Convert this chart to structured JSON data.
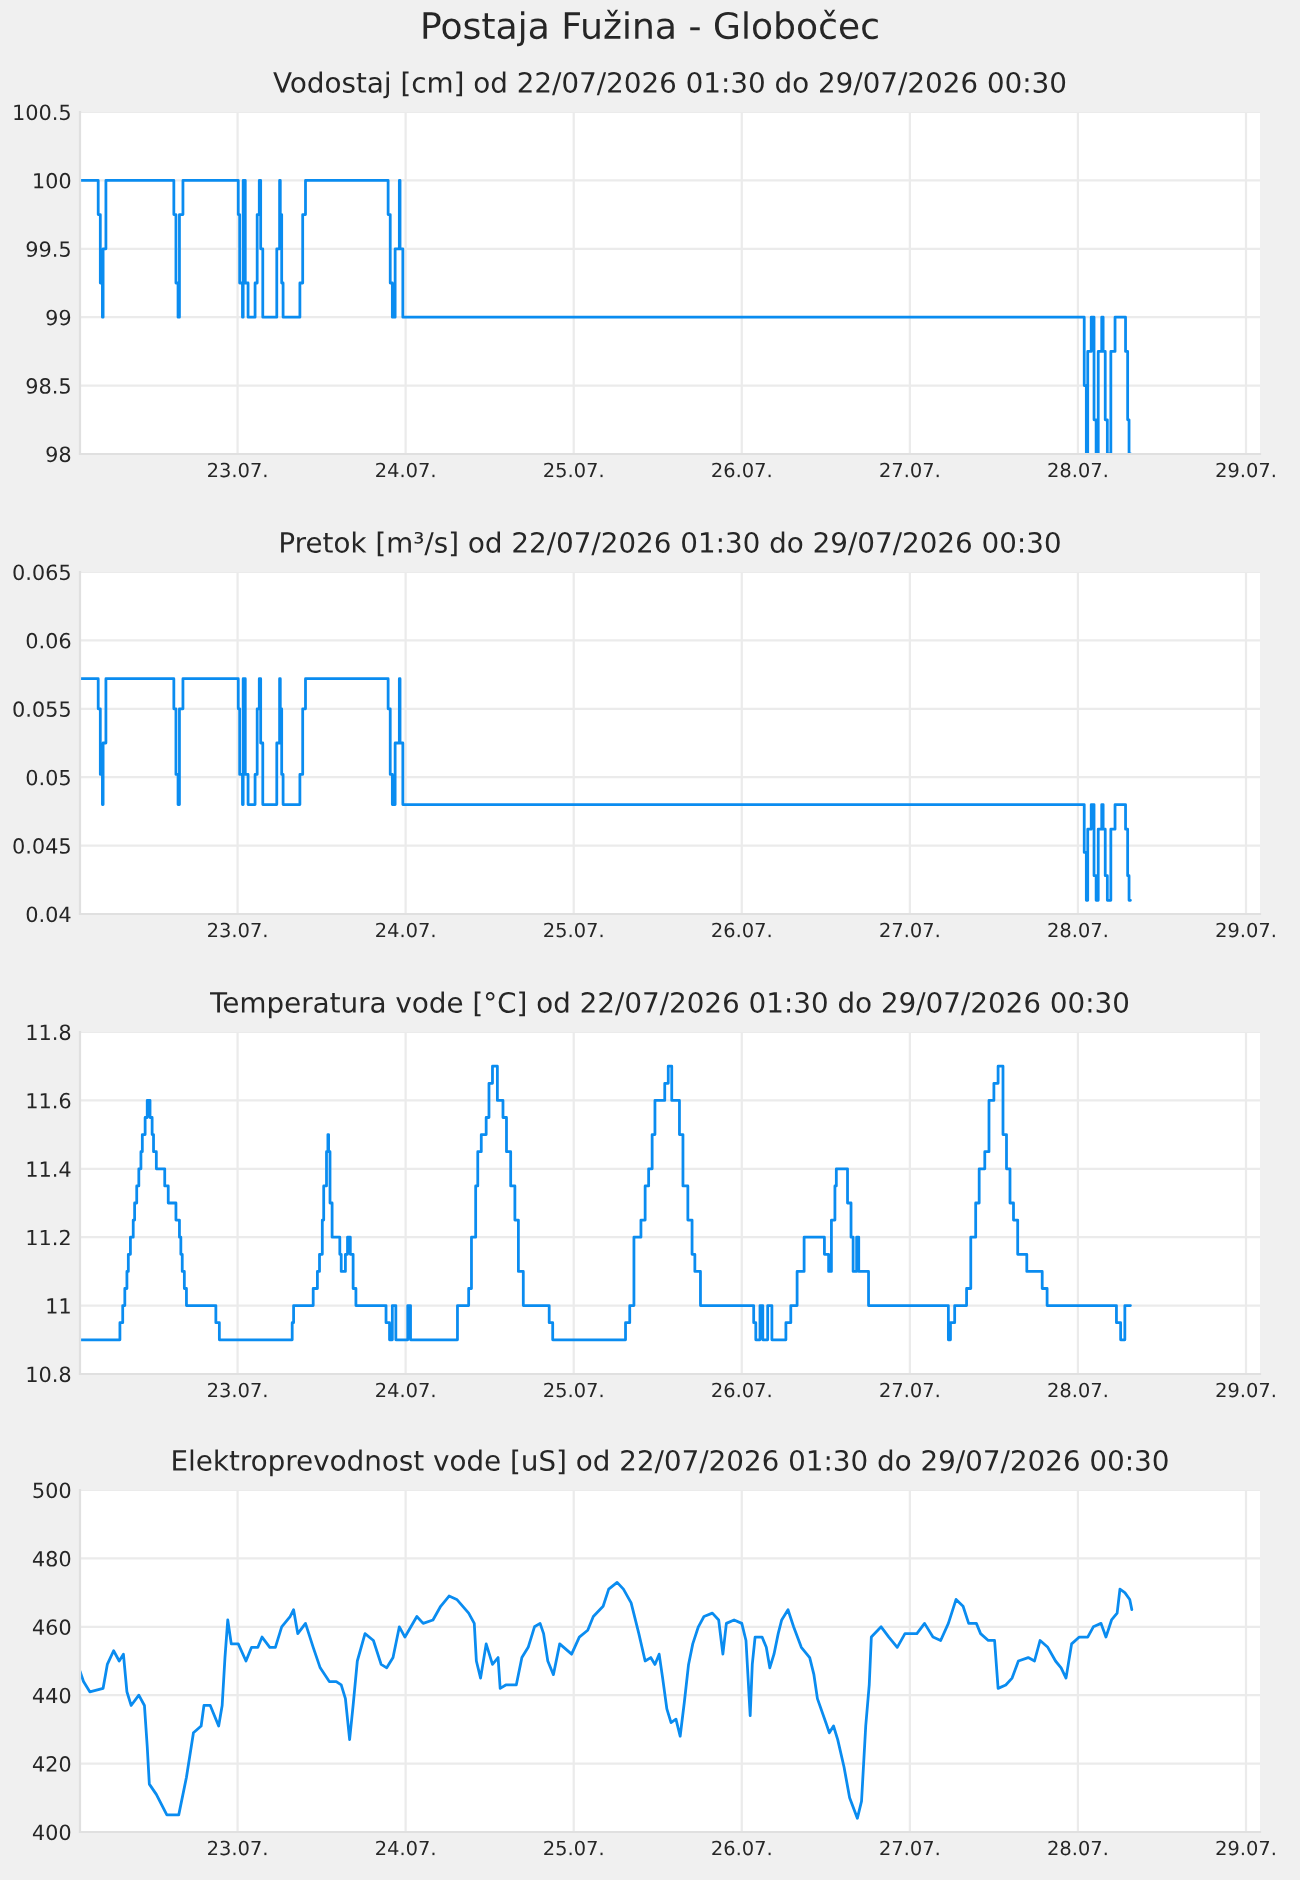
{
  "chart_data": [
    {
      "type": "step",
      "title": "Postaja Fužina - Globočec",
      "subtitle": "Vodostaj [cm] od 22/07/2026 01:30 do 29/07/2026 00:30",
      "xlim": [
        "2026-07-22T01:30",
        "2026-07-29T02:00"
      ],
      "xticks": [
        {
          "value": "2026-07-23",
          "label": "23.07."
        },
        {
          "value": "2026-07-24",
          "label": "24.07."
        },
        {
          "value": "2026-07-25",
          "label": "25.07."
        },
        {
          "value": "2026-07-26",
          "label": "26.07."
        },
        {
          "value": "2026-07-27",
          "label": "27.07."
        },
        {
          "value": "2026-07-28",
          "label": "28.07."
        },
        {
          "value": "2026-07-29",
          "label": "29.07."
        }
      ],
      "ylim": [
        98,
        100.5
      ],
      "yticks": [
        98,
        98.5,
        99,
        99.5,
        100,
        100.5
      ],
      "grid": true,
      "series": [
        {
          "color": "#0a8cf0",
          "x": [
            "2026-07-22T01:30",
            "2026-07-22T04:06",
            "2026-07-22T04:24",
            "2026-07-22T04:42",
            "2026-07-22T04:48",
            "2026-07-22T05:12",
            "2026-07-22T14:54",
            "2026-07-22T15:12",
            "2026-07-22T15:30",
            "2026-07-22T15:42",
            "2026-07-22T16:12",
            "2026-07-23T00:06",
            "2026-07-23T00:18",
            "2026-07-23T00:42",
            "2026-07-23T00:48",
            "2026-07-23T01:06",
            "2026-07-23T01:30",
            "2026-07-23T02:30",
            "2026-07-23T02:48",
            "2026-07-23T03:06",
            "2026-07-23T03:18",
            "2026-07-23T03:36",
            "2026-07-23T05:36",
            "2026-07-23T06:00",
            "2026-07-23T06:06",
            "2026-07-23T06:18",
            "2026-07-23T06:30",
            "2026-07-23T08:54",
            "2026-07-23T09:18",
            "2026-07-23T09:42",
            "2026-07-23T21:30",
            "2026-07-23T21:48",
            "2026-07-23T22:06",
            "2026-07-23T22:30",
            "2026-07-23T23:06",
            "2026-07-23T23:12",
            "2026-07-23T23:36",
            "2026-07-28T00:54",
            "2026-07-28T01:12",
            "2026-07-28T01:24",
            "2026-07-28T01:54",
            "2026-07-28T02:18",
            "2026-07-28T02:36",
            "2026-07-28T02:54",
            "2026-07-28T03:24",
            "2026-07-28T03:36",
            "2026-07-28T03:54",
            "2026-07-28T04:12",
            "2026-07-28T04:42",
            "2026-07-28T05:18",
            "2026-07-28T06:48",
            "2026-07-28T07:06",
            "2026-07-28T07:18",
            "2026-07-28T07:30"
          ],
          "values": [
            100,
            99.75,
            99.25,
            99,
            99.5,
            100,
            99.75,
            99.25,
            99,
            99.75,
            100,
            99.75,
            99.25,
            99,
            100,
            99.25,
            99,
            99.25,
            99.75,
            100,
            99.5,
            99,
            99.5,
            100,
            99.75,
            99.25,
            99,
            99.25,
            99.75,
            100,
            99.75,
            99.25,
            99,
            99.5,
            100,
            99.5,
            99,
            98.5,
            98,
            98.75,
            99,
            98.25,
            98,
            98.75,
            99,
            98.75,
            98.25,
            98,
            98.75,
            99,
            98.75,
            98.25,
            98,
            98
          ]
        }
      ]
    },
    {
      "type": "step",
      "subtitle": "Pretok [m³/s] od 22/07/2026 01:30 do 29/07/2026 00:30",
      "xlim": [
        "2026-07-22T01:30",
        "2026-07-29T02:00"
      ],
      "xticks": [
        {
          "value": "2026-07-23",
          "label": "23.07."
        },
        {
          "value": "2026-07-24",
          "label": "24.07."
        },
        {
          "value": "2026-07-25",
          "label": "25.07."
        },
        {
          "value": "2026-07-26",
          "label": "26.07."
        },
        {
          "value": "2026-07-27",
          "label": "27.07."
        },
        {
          "value": "2026-07-28",
          "label": "28.07."
        },
        {
          "value": "2026-07-29",
          "label": "29.07."
        }
      ],
      "ylim": [
        0.04,
        0.065
      ],
      "yticks": [
        0.04,
        0.045,
        0.05,
        0.055,
        0.06,
        0.065
      ],
      "grid": true,
      "series": [
        {
          "color": "#0a8cf0",
          "x": [
            "2026-07-22T01:30",
            "2026-07-22T04:06",
            "2026-07-22T04:24",
            "2026-07-22T04:42",
            "2026-07-22T04:48",
            "2026-07-22T05:12",
            "2026-07-22T14:54",
            "2026-07-22T15:12",
            "2026-07-22T15:30",
            "2026-07-22T15:42",
            "2026-07-22T16:12",
            "2026-07-23T00:06",
            "2026-07-23T00:18",
            "2026-07-23T00:42",
            "2026-07-23T00:48",
            "2026-07-23T01:06",
            "2026-07-23T01:30",
            "2026-07-23T02:30",
            "2026-07-23T02:48",
            "2026-07-23T03:06",
            "2026-07-23T03:18",
            "2026-07-23T03:36",
            "2026-07-23T05:36",
            "2026-07-23T06:00",
            "2026-07-23T06:06",
            "2026-07-23T06:18",
            "2026-07-23T06:30",
            "2026-07-23T08:54",
            "2026-07-23T09:18",
            "2026-07-23T09:42",
            "2026-07-23T21:30",
            "2026-07-23T21:48",
            "2026-07-23T22:06",
            "2026-07-23T22:30",
            "2026-07-23T23:06",
            "2026-07-23T23:12",
            "2026-07-23T23:36",
            "2026-07-28T00:54",
            "2026-07-28T01:12",
            "2026-07-28T01:24",
            "2026-07-28T01:54",
            "2026-07-28T02:18",
            "2026-07-28T02:36",
            "2026-07-28T02:54",
            "2026-07-28T03:24",
            "2026-07-28T03:36",
            "2026-07-28T03:54",
            "2026-07-28T04:12",
            "2026-07-28T04:42",
            "2026-07-28T05:18",
            "2026-07-28T06:48",
            "2026-07-28T07:06",
            "2026-07-28T07:18",
            "2026-07-28T07:30"
          ],
          "values": [
            0.0572,
            0.055,
            0.0502,
            0.048,
            0.0525,
            0.0572,
            0.055,
            0.0502,
            0.048,
            0.055,
            0.0572,
            0.055,
            0.0502,
            0.048,
            0.0572,
            0.0502,
            0.048,
            0.0502,
            0.055,
            0.0572,
            0.0525,
            0.048,
            0.0525,
            0.0572,
            0.055,
            0.0502,
            0.048,
            0.0502,
            0.055,
            0.0572,
            0.055,
            0.0502,
            0.048,
            0.0525,
            0.0572,
            0.0525,
            0.048,
            0.0445,
            0.041,
            0.0462,
            0.048,
            0.0428,
            0.041,
            0.0462,
            0.048,
            0.0462,
            0.0428,
            0.041,
            0.0462,
            0.048,
            0.0462,
            0.0428,
            0.041,
            0.041
          ]
        }
      ]
    },
    {
      "type": "step",
      "subtitle": "Temperatura vode [°C] od 22/07/2026 01:30 do 29/07/2026 00:30",
      "xlim": [
        "2026-07-22T01:30",
        "2026-07-29T02:00"
      ],
      "xticks": [
        {
          "value": "2026-07-23",
          "label": "23.07."
        },
        {
          "value": "2026-07-24",
          "label": "24.07."
        },
        {
          "value": "2026-07-25",
          "label": "25.07."
        },
        {
          "value": "2026-07-26",
          "label": "26.07."
        },
        {
          "value": "2026-07-27",
          "label": "27.07."
        },
        {
          "value": "2026-07-28",
          "label": "28.07."
        },
        {
          "value": "2026-07-29",
          "label": "29.07."
        }
      ],
      "ylim": [
        10.8,
        11.8
      ],
      "yticks": [
        10.8,
        11,
        11.2,
        11.4,
        11.6,
        11.8
      ],
      "grid": true,
      "series": [
        {
          "color": "#0a8cf0",
          "x": [
            "2026-07-22T01:30",
            "2026-07-22T07:12",
            "2026-07-22T07:36",
            "2026-07-22T07:54",
            "2026-07-22T08:12",
            "2026-07-22T08:24",
            "2026-07-22T08:42",
            "2026-07-22T09:06",
            "2026-07-22T09:18",
            "2026-07-22T09:36",
            "2026-07-22T09:54",
            "2026-07-22T10:12",
            "2026-07-22T10:24",
            "2026-07-22T10:48",
            "2026-07-22T11:06",
            "2026-07-22T11:30",
            "2026-07-22T11:48",
            "2026-07-22T12:00",
            "2026-07-22T12:24",
            "2026-07-22T13:36",
            "2026-07-22T14:06",
            "2026-07-22T15:12",
            "2026-07-22T15:42",
            "2026-07-22T15:54",
            "2026-07-22T16:06",
            "2026-07-22T16:24",
            "2026-07-22T16:42",
            "2026-07-22T20:54",
            "2026-07-22T21:24",
            "2026-07-23T07:48",
            "2026-07-23T08:00",
            "2026-07-23T10:48",
            "2026-07-23T11:24",
            "2026-07-23T11:42",
            "2026-07-23T12:06",
            "2026-07-23T12:18",
            "2026-07-23T12:42",
            "2026-07-23T12:54",
            "2026-07-23T13:00",
            "2026-07-23T13:12",
            "2026-07-23T13:30",
            "2026-07-23T14:36",
            "2026-07-23T14:48",
            "2026-07-23T15:24",
            "2026-07-23T15:42",
            "2026-07-23T16:06",
            "2026-07-23T16:30",
            "2026-07-23T16:54",
            "2026-07-23T21:12",
            "2026-07-23T21:42",
            "2026-07-23T22:06",
            "2026-07-23T22:36",
            "2026-07-24T00:18",
            "2026-07-24T00:42",
            "2026-07-24T07:24",
            "2026-07-24T09:00",
            "2026-07-24T09:24",
            "2026-07-24T10:00",
            "2026-07-24T10:18",
            "2026-07-24T10:48",
            "2026-07-24T11:30",
            "2026-07-24T11:54",
            "2026-07-24T12:24",
            "2026-07-24T13:06",
            "2026-07-24T13:54",
            "2026-07-24T14:24",
            "2026-07-24T15:00",
            "2026-07-24T15:36",
            "2026-07-24T16:06",
            "2026-07-24T16:48",
            "2026-07-24T20:30",
            "2026-07-24T21:00",
            "2026-07-25T07:24",
            "2026-07-25T08:00",
            "2026-07-25T08:36",
            "2026-07-25T09:36",
            "2026-07-25T10:12",
            "2026-07-25T10:42",
            "2026-07-25T11:12",
            "2026-07-25T11:36",
            "2026-07-25T13:00",
            "2026-07-25T13:30",
            "2026-07-25T14:00",
            "2026-07-25T15:06",
            "2026-07-25T15:36",
            "2026-07-25T16:18",
            "2026-07-25T16:54",
            "2026-07-25T17:18",
            "2026-07-25T18:06",
            "2026-07-26T01:42",
            "2026-07-26T02:00",
            "2026-07-26T02:36",
            "2026-07-26T03:00",
            "2026-07-26T03:42",
            "2026-07-26T04:18",
            "2026-07-26T06:18",
            "2026-07-26T07:00",
            "2026-07-26T07:54",
            "2026-07-26T08:54",
            "2026-07-26T11:48",
            "2026-07-26T12:24",
            "2026-07-26T12:48",
            "2026-07-26T13:18",
            "2026-07-26T13:30",
            "2026-07-26T15:06",
            "2026-07-26T15:36",
            "2026-07-26T15:54",
            "2026-07-26T16:24",
            "2026-07-26T16:42",
            "2026-07-26T18:06",
            "2026-07-27T05:30",
            "2026-07-27T05:48",
            "2026-07-27T06:24",
            "2026-07-27T08:06",
            "2026-07-27T08:42",
            "2026-07-27T09:24",
            "2026-07-27T09:54",
            "2026-07-27T10:42",
            "2026-07-27T11:18",
            "2026-07-27T12:00",
            "2026-07-27T12:36",
            "2026-07-27T13:18",
            "2026-07-27T13:48",
            "2026-07-27T14:18",
            "2026-07-27T14:48",
            "2026-07-27T15:24",
            "2026-07-27T16:42",
            "2026-07-27T18:54",
            "2026-07-27T19:36",
            "2026-07-28T05:30",
            "2026-07-28T06:06",
            "2026-07-28T06:42",
            "2026-07-28T07:30"
          ],
          "values": [
            10.9,
            10.95,
            11.0,
            11.05,
            11.1,
            11.15,
            11.2,
            11.25,
            11.3,
            11.35,
            11.4,
            11.45,
            11.5,
            11.55,
            11.6,
            11.55,
            11.5,
            11.45,
            11.4,
            11.35,
            11.3,
            11.25,
            11.2,
            11.15,
            11.1,
            11.05,
            11.0,
            10.95,
            10.9,
            10.95,
            11.0,
            11.05,
            11.1,
            11.15,
            11.25,
            11.35,
            11.45,
            11.5,
            11.45,
            11.3,
            11.2,
            11.15,
            11.1,
            11.15,
            11.2,
            11.15,
            11.05,
            11.0,
            10.95,
            10.9,
            11.0,
            10.9,
            11.0,
            10.9,
            11.0,
            11.05,
            11.2,
            11.35,
            11.45,
            11.5,
            11.55,
            11.65,
            11.7,
            11.6,
            11.55,
            11.45,
            11.35,
            11.25,
            11.1,
            11.0,
            10.95,
            10.9,
            10.95,
            11.0,
            11.2,
            11.25,
            11.35,
            11.4,
            11.5,
            11.6,
            11.65,
            11.7,
            11.6,
            11.5,
            11.35,
            11.25,
            11.15,
            11.1,
            11.0,
            10.95,
            10.9,
            11.0,
            10.9,
            11.0,
            10.9,
            10.95,
            11.0,
            11.1,
            11.2,
            11.15,
            11.1,
            11.25,
            11.35,
            11.4,
            11.3,
            11.2,
            11.1,
            11.2,
            11.1,
            11.0,
            10.9,
            10.95,
            11.0,
            11.05,
            11.2,
            11.3,
            11.4,
            11.45,
            11.6,
            11.65,
            11.7,
            11.5,
            11.4,
            11.3,
            11.25,
            11.15,
            11.1,
            11.05,
            11.0,
            10.95,
            10.9,
            11.0,
            11.0
          ]
        }
      ]
    },
    {
      "type": "line",
      "subtitle": "Elektroprevodnost vode [uS] od 22/07/2026 01:30 do 29/07/2026 00:30",
      "xlim": [
        "2026-07-22T01:30",
        "2026-07-29T02:00"
      ],
      "xticks": [
        {
          "value": "2026-07-23",
          "label": "23.07."
        },
        {
          "value": "2026-07-24",
          "label": "24.07."
        },
        {
          "value": "2026-07-25",
          "label": "25.07."
        },
        {
          "value": "2026-07-26",
          "label": "26.07."
        },
        {
          "value": "2026-07-27",
          "label": "27.07."
        },
        {
          "value": "2026-07-28",
          "label": "28.07."
        },
        {
          "value": "2026-07-29",
          "label": "29.07."
        }
      ],
      "ylim": [
        400,
        500
      ],
      "yticks": [
        400,
        420,
        440,
        460,
        480,
        500
      ],
      "grid": true,
      "series": [
        {
          "color": "#0a8cf0",
          "x": [
            "2026-07-22T01:30",
            "2026-07-22T02:00",
            "2026-07-22T02:54",
            "2026-07-22T04:48",
            "2026-07-22T05:24",
            "2026-07-22T06:18",
            "2026-07-22T07:06",
            "2026-07-22T07:42",
            "2026-07-22T08:12",
            "2026-07-22T08:48",
            "2026-07-22T09:54",
            "2026-07-22T10:42",
            "2026-07-22T11:06",
            "2026-07-22T11:24",
            "2026-07-22T12:24",
            "2026-07-22T13:54",
            "2026-07-22T15:36",
            "2026-07-22T16:42",
            "2026-07-22T17:42",
            "2026-07-22T18:48",
            "2026-07-22T19:12",
            "2026-07-22T20:06",
            "2026-07-22T21:18",
            "2026-07-22T21:48",
            "2026-07-22T22:12",
            "2026-07-22T22:36",
            "2026-07-22T23:06",
            "2026-07-23T00:06",
            "2026-07-23T01:12",
            "2026-07-23T02:00",
            "2026-07-23T02:54",
            "2026-07-23T03:30",
            "2026-07-23T04:36",
            "2026-07-23T05:24",
            "2026-07-23T06:18",
            "2026-07-23T07:30",
            "2026-07-23T08:00",
            "2026-07-23T08:36",
            "2026-07-23T09:42",
            "2026-07-23T10:48",
            "2026-07-23T11:48",
            "2026-07-23T13:06",
            "2026-07-23T14:06",
            "2026-07-23T14:48",
            "2026-07-23T15:24",
            "2026-07-23T16:00",
            "2026-07-23T16:30",
            "2026-07-23T17:06",
            "2026-07-23T18:12",
            "2026-07-23T19:24",
            "2026-07-23T20:30",
            "2026-07-23T21:18",
            "2026-07-23T22:12",
            "2026-07-23T23:06",
            "2026-07-23T23:54",
            "2026-07-24T01:36",
            "2026-07-24T02:30",
            "2026-07-24T03:54",
            "2026-07-24T05:00",
            "2026-07-24T06:12",
            "2026-07-24T07:18",
            "2026-07-24T09:00",
            "2026-07-24T09:48",
            "2026-07-24T10:06",
            "2026-07-24T10:42",
            "2026-07-24T11:30",
            "2026-07-24T12:24",
            "2026-07-24T13:12",
            "2026-07-24T13:30",
            "2026-07-24T14:18",
            "2026-07-24T15:48",
            "2026-07-24T16:36",
            "2026-07-24T17:30",
            "2026-07-24T18:24",
            "2026-07-24T19:12",
            "2026-07-24T19:42",
            "2026-07-24T20:18",
            "2026-07-24T21:06",
            "2026-07-24T22:00",
            "2026-07-24T23:42",
            "2026-07-25T00:48",
            "2026-07-25T02:00",
            "2026-07-25T02:48",
            "2026-07-25T04:12",
            "2026-07-25T05:00",
            "2026-07-25T06:12",
            "2026-07-25T07:06",
            "2026-07-25T08:12",
            "2026-07-25T09:18",
            "2026-07-25T10:12",
            "2026-07-25T11:00",
            "2026-07-25T11:36",
            "2026-07-25T12:12",
            "2026-07-25T12:42",
            "2026-07-25T13:18",
            "2026-07-25T13:54",
            "2026-07-25T14:36",
            "2026-07-25T15:12",
            "2026-07-25T15:48",
            "2026-07-25T16:24",
            "2026-07-25T17:00",
            "2026-07-25T17:48",
            "2026-07-25T18:36",
            "2026-07-25T19:48",
            "2026-07-25T20:42",
            "2026-07-25T21:18",
            "2026-07-25T21:48",
            "2026-07-25T22:54",
            "2026-07-26T00:00",
            "2026-07-26T00:36",
            "2026-07-26T01:12",
            "2026-07-26T01:30",
            "2026-07-26T01:54",
            "2026-07-26T02:54",
            "2026-07-26T03:30",
            "2026-07-26T04:00",
            "2026-07-26T04:36",
            "2026-07-26T05:12",
            "2026-07-26T05:42",
            "2026-07-26T06:36",
            "2026-07-26T07:24",
            "2026-07-26T08:30",
            "2026-07-26T09:42",
            "2026-07-26T10:18",
            "2026-07-26T10:48",
            "2026-07-26T12:00",
            "2026-07-26T12:30",
            "2026-07-26T13:06",
            "2026-07-26T13:42",
            "2026-07-26T14:36",
            "2026-07-26T15:24",
            "2026-07-26T16:30",
            "2026-07-26T17:06",
            "2026-07-26T17:42",
            "2026-07-26T18:12",
            "2026-07-26T18:30",
            "2026-07-26T19:54",
            "2026-07-26T21:00",
            "2026-07-26T22:12",
            "2026-07-26T23:18",
            "2026-07-27T01:00",
            "2026-07-27T02:06",
            "2026-07-27T03:18",
            "2026-07-27T04:24",
            "2026-07-27T05:30",
            "2026-07-27T06:36",
            "2026-07-27T07:36",
            "2026-07-27T08:24",
            "2026-07-27T09:30",
            "2026-07-27T10:06",
            "2026-07-27T11:12",
            "2026-07-27T12:06",
            "2026-07-27T12:36",
            "2026-07-27T13:42",
            "2026-07-27T14:36",
            "2026-07-27T15:30",
            "2026-07-27T16:54",
            "2026-07-27T17:48",
            "2026-07-27T18:36",
            "2026-07-27T19:42",
            "2026-07-27T20:48",
            "2026-07-27T21:36",
            "2026-07-27T22:18",
            "2026-07-27T23:06",
            "2026-07-28T00:12",
            "2026-07-28T01:24",
            "2026-07-28T02:12",
            "2026-07-28T03:18",
            "2026-07-28T04:00",
            "2026-07-28T04:48",
            "2026-07-28T05:36",
            "2026-07-28T06:00",
            "2026-07-28T06:42",
            "2026-07-28T07:24",
            "2026-07-28T07:42"
          ],
          "values": [
            447,
            444,
            441,
            442,
            449,
            453,
            450,
            452,
            441,
            437,
            440,
            437,
            425,
            414,
            411,
            405,
            405,
            416,
            429,
            431,
            437,
            437,
            431,
            437,
            451,
            462,
            455,
            455,
            450,
            454,
            454,
            457,
            454,
            454,
            460,
            463,
            465,
            458,
            461,
            454,
            448,
            444,
            444,
            443,
            439,
            427,
            437,
            450,
            458,
            456,
            449,
            448,
            451,
            460,
            457,
            463,
            461,
            462,
            466,
            469,
            468,
            464,
            461,
            450,
            445,
            455,
            449,
            451,
            442,
            443,
            443,
            451,
            454,
            460,
            461,
            458,
            450,
            446,
            455,
            452,
            457,
            459,
            463,
            466,
            471,
            473,
            471,
            467,
            458,
            450,
            451,
            449,
            452,
            445,
            436,
            432,
            433,
            428,
            438,
            449,
            455,
            460,
            463,
            464,
            462,
            452,
            461,
            462,
            461,
            456,
            434,
            449,
            457,
            457,
            454,
            448,
            452,
            458,
            462,
            465,
            460,
            454,
            451,
            446,
            439,
            432,
            429,
            431,
            427,
            419,
            410,
            404,
            409,
            431,
            443,
            457,
            460,
            457,
            454,
            458,
            458,
            461,
            457,
            456,
            461,
            468,
            466,
            461,
            461,
            458,
            456,
            456,
            442,
            443,
            445,
            450,
            451,
            450,
            456,
            454,
            450,
            448,
            445,
            455,
            457,
            457,
            460,
            461,
            457,
            462,
            464,
            471,
            470,
            468,
            465
          ]
        }
      ]
    }
  ]
}
